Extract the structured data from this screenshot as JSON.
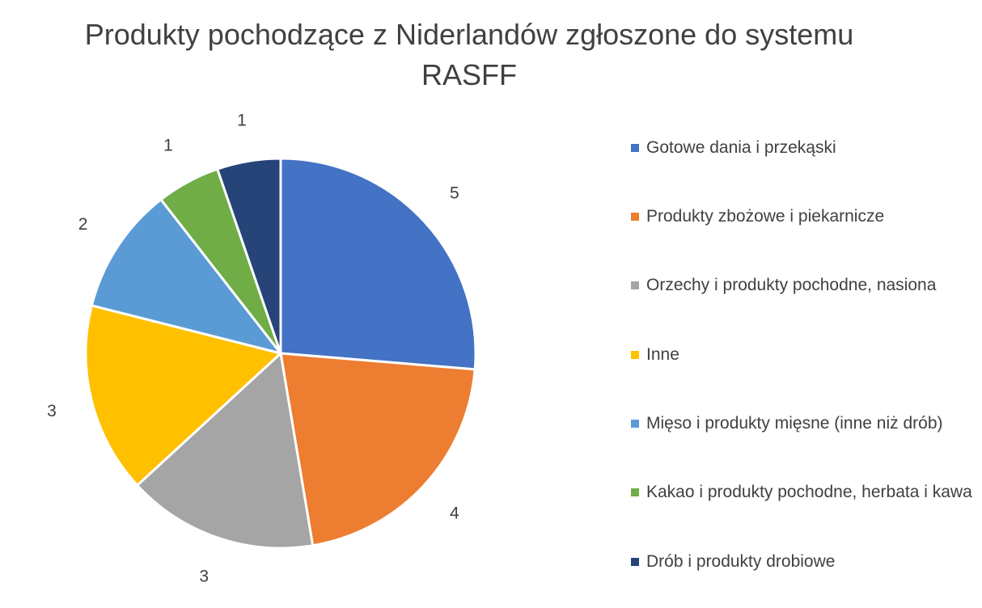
{
  "chart_data": {
    "type": "pie",
    "title_lines": [
      "Produkty pochodzące z Niderlandów zgłoszone do systemu",
      "RASFF"
    ],
    "legend_position": "right",
    "slices": [
      {
        "label": "Gotowe dania i przekąski",
        "value": 5,
        "color": "#4472C4"
      },
      {
        "label": "Produkty zbożowe i piekarnicze",
        "value": 4,
        "color": "#ED7D31"
      },
      {
        "label": "Orzechy i produkty pochodne, nasiona",
        "value": 3,
        "color": "#A5A5A5"
      },
      {
        "label": "Inne",
        "value": 3,
        "color": "#FFC000"
      },
      {
        "label": "Mięso i produkty mięsne (inne niż drób)",
        "value": 2,
        "color": "#5B9BD5"
      },
      {
        "label": "Kakao i produkty pochodne, herbata i kawa",
        "value": 1,
        "color": "#70AD47"
      },
      {
        "label": "Drób i produkty drobiowe",
        "value": 1,
        "color": "#264478"
      }
    ]
  }
}
